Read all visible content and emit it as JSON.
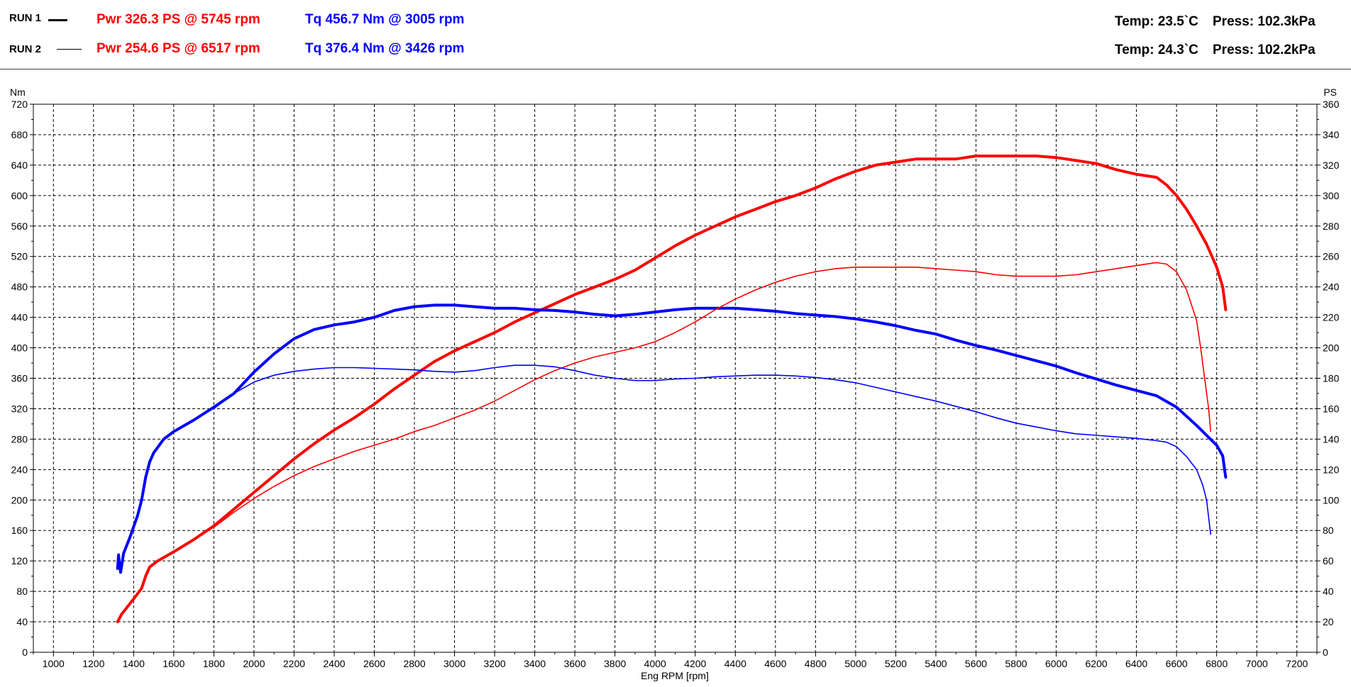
{
  "header": {
    "run1": {
      "label": "RUN 1",
      "power": "Pwr  326.3 PS @ 5745 rpm",
      "torque": "Tq 456.7 Nm @ 3005 rpm",
      "temp": "Temp: 23.5`C",
      "press": "Press: 102.3kPa"
    },
    "run2": {
      "label": "RUN 2",
      "power": "Pwr  254.6 PS @ 6517 rpm",
      "torque": "Tq 376.4 Nm @ 3426 rpm",
      "temp": "Temp: 24.3`C",
      "press": "Press: 102.2kPa"
    }
  },
  "colors": {
    "power": "#ff0000",
    "torque": "#0000ff",
    "grid": "#000000"
  },
  "chart_data": {
    "type": "line",
    "xlabel": "Eng RPM [rpm]",
    "ylabel_left": "Nm",
    "ylabel_right": "PS",
    "xlim": [
      900,
      7300
    ],
    "ylim_left": [
      0,
      720
    ],
    "ylim_right": [
      0,
      360
    ],
    "x_ticks": [
      1000,
      1200,
      1400,
      1600,
      1800,
      2000,
      2200,
      2400,
      2600,
      2800,
      3000,
      3200,
      3400,
      3600,
      3800,
      4000,
      4200,
      4400,
      4600,
      4800,
      5000,
      5200,
      5400,
      5600,
      5800,
      6000,
      6200,
      6400,
      6600,
      6800,
      7000,
      7200
    ],
    "y_ticks_left": [
      0,
      40,
      80,
      120,
      160,
      200,
      240,
      280,
      320,
      360,
      400,
      440,
      480,
      520,
      560,
      600,
      640,
      680,
      720
    ],
    "y_ticks_right": [
      0,
      20,
      40,
      60,
      80,
      100,
      120,
      140,
      160,
      180,
      200,
      220,
      240,
      260,
      280,
      300,
      320,
      340,
      360
    ],
    "grid": true,
    "series": [
      {
        "run": "RUN 1",
        "quantity": "power",
        "axis": "right",
        "weight": "thick",
        "color": "#ff0000",
        "x": [
          1320,
          1340,
          1400,
          1440,
          1460,
          1480,
          1520,
          1600,
          1700,
          1800,
          1900,
          2000,
          2100,
          2200,
          2300,
          2400,
          2500,
          2600,
          2700,
          2800,
          2900,
          3000,
          3100,
          3200,
          3300,
          3400,
          3500,
          3600,
          3700,
          3800,
          3900,
          4000,
          4100,
          4200,
          4300,
          4400,
          4500,
          4600,
          4700,
          4800,
          4900,
          5000,
          5100,
          5200,
          5300,
          5400,
          5500,
          5600,
          5700,
          5800,
          5900,
          6000,
          6100,
          6200,
          6300,
          6400,
          6500,
          6550,
          6600,
          6650,
          6700,
          6750,
          6800,
          6830,
          6845
        ],
        "y": [
          20,
          25,
          35,
          42,
          50,
          56,
          60,
          66,
          74,
          83,
          94,
          105,
          116,
          127,
          137,
          146,
          154,
          163,
          173,
          182,
          191,
          198,
          204,
          210,
          217,
          223,
          229,
          235,
          240,
          245,
          251,
          259,
          267,
          274,
          280,
          286,
          291,
          296,
          300,
          305,
          311,
          316,
          320,
          322,
          324,
          324,
          324,
          326,
          326,
          326,
          326,
          325,
          323,
          321,
          317,
          314,
          312,
          307,
          300,
          291,
          280,
          268,
          253,
          240,
          225
        ]
      },
      {
        "run": "RUN 1",
        "quantity": "torque",
        "axis": "left",
        "weight": "thick",
        "color": "#0000ff",
        "x": [
          1320,
          1325,
          1330,
          1335,
          1350,
          1380,
          1420,
          1440,
          1460,
          1480,
          1500,
          1550,
          1600,
          1700,
          1800,
          1900,
          2000,
          2100,
          2200,
          2300,
          2400,
          2500,
          2600,
          2700,
          2800,
          2900,
          3000,
          3100,
          3200,
          3300,
          3400,
          3500,
          3600,
          3700,
          3800,
          3900,
          4000,
          4100,
          4200,
          4300,
          4400,
          4500,
          4600,
          4700,
          4800,
          4900,
          5000,
          5100,
          5200,
          5300,
          5400,
          5500,
          5600,
          5700,
          5800,
          5900,
          6000,
          6100,
          6200,
          6300,
          6400,
          6500,
          6600,
          6650,
          6700,
          6750,
          6800,
          6830,
          6845
        ],
        "y": [
          110,
          128,
          115,
          105,
          130,
          150,
          180,
          200,
          230,
          250,
          262,
          280,
          290,
          305,
          322,
          340,
          368,
          392,
          412,
          424,
          430,
          434,
          440,
          449,
          454,
          456,
          456,
          454,
          452,
          452,
          450,
          449,
          447,
          444,
          442,
          444,
          447,
          450,
          452,
          452,
          452,
          450,
          448,
          445,
          443,
          441,
          438,
          434,
          429,
          423,
          418,
          410,
          403,
          397,
          390,
          383,
          376,
          367,
          359,
          351,
          344,
          337,
          322,
          310,
          298,
          285,
          272,
          258,
          230
        ]
      },
      {
        "run": "RUN 2",
        "quantity": "power",
        "axis": "right",
        "weight": "thin",
        "color": "#ff0000",
        "x": [
          1800,
          1900,
          2000,
          2100,
          2200,
          2300,
          2400,
          2500,
          2600,
          2700,
          2800,
          2900,
          3000,
          3100,
          3200,
          3300,
          3400,
          3500,
          3600,
          3700,
          3800,
          3900,
          4000,
          4100,
          4200,
          4300,
          4400,
          4500,
          4600,
          4700,
          4800,
          4900,
          5000,
          5100,
          5200,
          5300,
          5400,
          5500,
          5600,
          5700,
          5800,
          5900,
          6000,
          6100,
          6200,
          6300,
          6400,
          6500,
          6550,
          6600,
          6650,
          6700,
          6720,
          6740,
          6760,
          6770
        ],
        "y": [
          82,
          92,
          101,
          109,
          116,
          122,
          127,
          132,
          136,
          140,
          145,
          149,
          154,
          159,
          165,
          172,
          179,
          185,
          190,
          194,
          197,
          200,
          204,
          210,
          217,
          225,
          232,
          238,
          243,
          247,
          250,
          252,
          253,
          253,
          253,
          253,
          252,
          251,
          250,
          248,
          247,
          247,
          247,
          248,
          250,
          252,
          254,
          256,
          255,
          250,
          238,
          218,
          200,
          180,
          160,
          145
        ]
      },
      {
        "run": "RUN 2",
        "quantity": "torque",
        "axis": "left",
        "weight": "thin",
        "color": "#0000ff",
        "x": [
          1800,
          1900,
          2000,
          2100,
          2200,
          2300,
          2400,
          2500,
          2600,
          2700,
          2800,
          2900,
          3000,
          3100,
          3200,
          3300,
          3400,
          3500,
          3600,
          3700,
          3800,
          3900,
          4000,
          4100,
          4200,
          4300,
          4400,
          4500,
          4600,
          4700,
          4800,
          4900,
          5000,
          5100,
          5200,
          5300,
          5400,
          5500,
          5600,
          5700,
          5800,
          5900,
          6000,
          6100,
          6200,
          6300,
          6400,
          6500,
          6550,
          6600,
          6650,
          6700,
          6730,
          6750,
          6770
        ],
        "y": [
          320,
          340,
          355,
          364,
          369,
          372,
          374,
          374,
          373,
          372,
          371,
          369,
          368,
          370,
          374,
          377,
          377,
          375,
          370,
          364,
          360,
          357,
          357,
          359,
          360,
          362,
          363,
          364,
          364,
          363,
          361,
          358,
          354,
          348,
          342,
          336,
          330,
          323,
          316,
          308,
          301,
          296,
          291,
          287,
          285,
          283,
          281,
          278,
          276,
          270,
          257,
          240,
          220,
          200,
          155
        ]
      }
    ]
  }
}
